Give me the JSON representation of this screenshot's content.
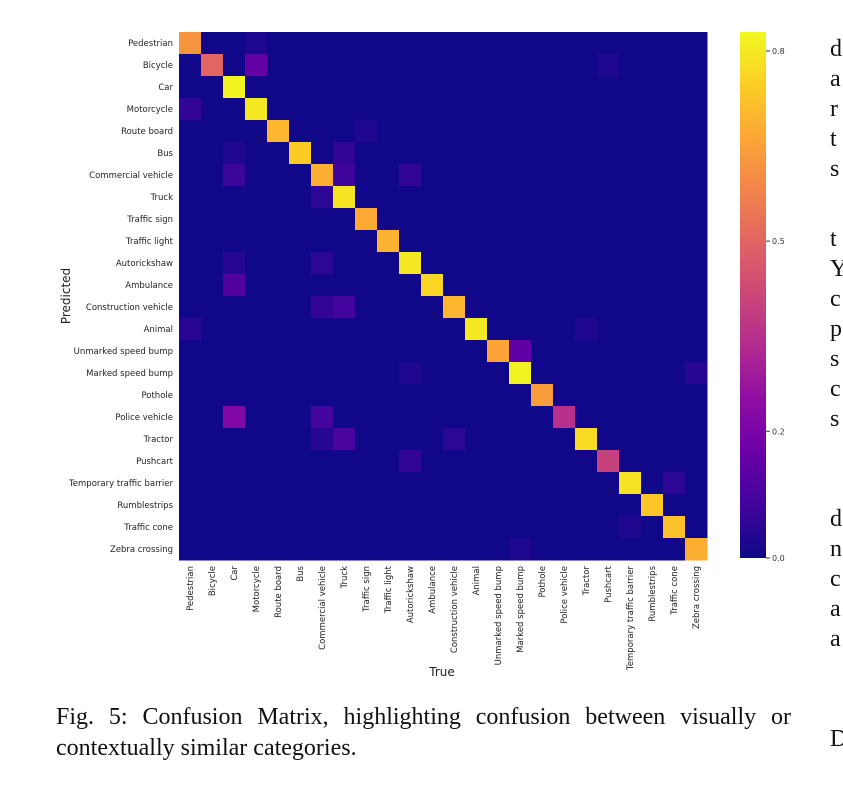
{
  "chart_data": {
    "type": "heatmap",
    "title": "",
    "xlabel": "True",
    "ylabel": "Predicted",
    "categories": [
      "Pedestrian",
      "Bicycle",
      "Car",
      "Motorcycle",
      "Route board",
      "Bus",
      "Commercial vehicle",
      "Truck",
      "Traffic sign",
      "Traffic light",
      "Autorickshaw",
      "Ambulance",
      "Construction vehicle",
      "Animal",
      "Unmarked speed bump",
      "Marked speed bump",
      "Pothole",
      "Police vehicle",
      "Tractor",
      "Pushcart",
      "Temporary traffic barrier",
      "Rumblestrips",
      "Traffic cone",
      "Zebra crossing"
    ],
    "diagonal": [
      0.62,
      0.5,
      0.82,
      0.8,
      0.7,
      0.74,
      0.68,
      0.79,
      0.67,
      0.69,
      0.8,
      0.76,
      0.7,
      0.8,
      0.66,
      0.82,
      0.64,
      0.35,
      0.77,
      0.4,
      0.79,
      0.73,
      0.72,
      0.68
    ],
    "off_diagonal": [
      {
        "row": "Pedestrian",
        "col": "Motorcycle",
        "value": 0.03
      },
      {
        "row": "Bicycle",
        "col": "Motorcycle",
        "value": 0.15
      },
      {
        "row": "Bicycle",
        "col": "Pushcart",
        "value": 0.03
      },
      {
        "row": "Motorcycle",
        "col": "Pedestrian",
        "value": 0.06
      },
      {
        "row": "Route board",
        "col": "Traffic sign",
        "value": 0.03
      },
      {
        "row": "Bus",
        "col": "Car",
        "value": 0.03
      },
      {
        "row": "Bus",
        "col": "Truck",
        "value": 0.06
      },
      {
        "row": "Commercial vehicle",
        "col": "Car",
        "value": 0.07
      },
      {
        "row": "Commercial vehicle",
        "col": "Truck",
        "value": 0.08
      },
      {
        "row": "Commercial vehicle",
        "col": "Autorickshaw",
        "value": 0.06
      },
      {
        "row": "Truck",
        "col": "Commercial vehicle",
        "value": 0.05
      },
      {
        "row": "Autorickshaw",
        "col": "Car",
        "value": 0.04
      },
      {
        "row": "Autorickshaw",
        "col": "Commercial vehicle",
        "value": 0.05
      },
      {
        "row": "Ambulance",
        "col": "Car",
        "value": 0.12
      },
      {
        "row": "Construction vehicle",
        "col": "Commercial vehicle",
        "value": 0.06
      },
      {
        "row": "Construction vehicle",
        "col": "Truck",
        "value": 0.09
      },
      {
        "row": "Animal",
        "col": "Pedestrian",
        "value": 0.04
      },
      {
        "row": "Animal",
        "col": "Tractor",
        "value": 0.03
      },
      {
        "row": "Unmarked speed bump",
        "col": "Marked speed bump",
        "value": 0.14
      },
      {
        "row": "Marked speed bump",
        "col": "Autorickshaw",
        "value": 0.03
      },
      {
        "row": "Marked speed bump",
        "col": "Zebra crossing",
        "value": 0.04
      },
      {
        "row": "Police vehicle",
        "col": "Car",
        "value": 0.22
      },
      {
        "row": "Police vehicle",
        "col": "Commercial vehicle",
        "value": 0.09
      },
      {
        "row": "Tractor",
        "col": "Commercial vehicle",
        "value": 0.04
      },
      {
        "row": "Tractor",
        "col": "Truck",
        "value": 0.1
      },
      {
        "row": "Tractor",
        "col": "Construction vehicle",
        "value": 0.05
      },
      {
        "row": "Pushcart",
        "col": "Autorickshaw",
        "value": 0.06
      },
      {
        "row": "Temporary traffic barrier",
        "col": "Traffic cone",
        "value": 0.05
      },
      {
        "row": "Traffic cone",
        "col": "Temporary traffic barrier",
        "value": 0.03
      },
      {
        "row": "Zebra crossing",
        "col": "Marked speed bump",
        "value": 0.03
      }
    ],
    "colormap": "plasma",
    "vmin": 0.0,
    "vmax": 0.83,
    "colorbar_ticks": [
      0.0,
      0.2,
      0.5,
      0.8
    ],
    "colorbar_tick_labels": [
      "0.0",
      "0.2",
      "0.5",
      "0.8"
    ],
    "grid": false,
    "legend": "colorbar-right"
  },
  "caption": "Fig. 5: Confusion Matrix, highlighting confusion between visually or contextually similar categories.",
  "right_column_fragments": [
    "d",
    "a",
    "r",
    "t",
    "s",
    "t",
    "Y",
    "c",
    "p",
    "s",
    "c",
    "s",
    "d",
    "n",
    "c",
    "a",
    "a",
    "D"
  ]
}
